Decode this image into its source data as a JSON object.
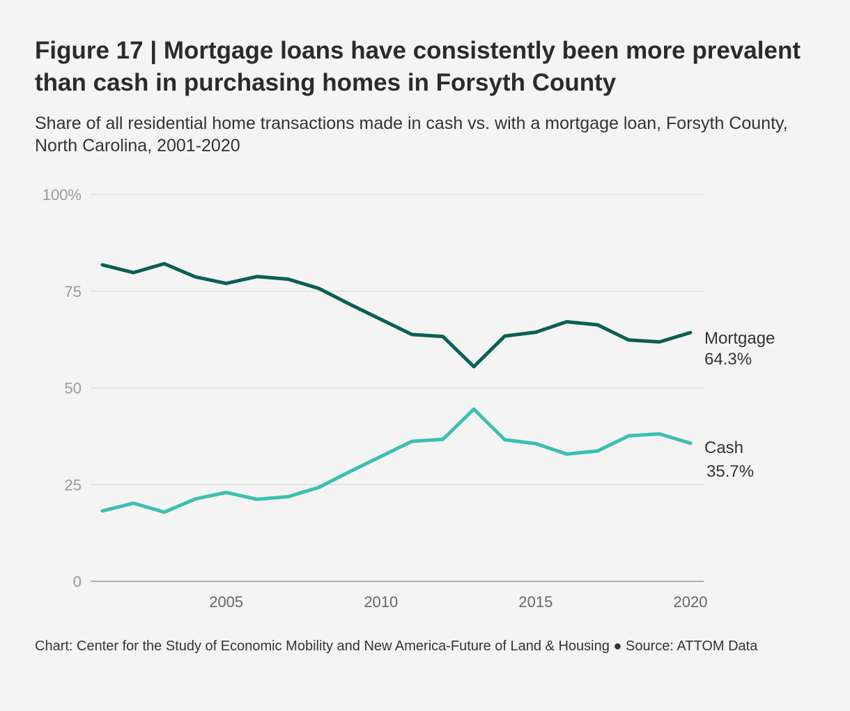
{
  "title": "Figure 17 | Mortgage loans have consistently been more prevalent than cash in purchasing homes in Forsyth County",
  "subtitle": "Share of all residential home transactions made in cash vs. with a mortgage loan, Forsyth County, North Carolina, 2001-2020",
  "caption": "Chart: Center for the Study of Economic Mobility and New America-Future of Land & Housing ● Source: ATTOM Data",
  "chart_data": {
    "type": "line",
    "title": "Figure 17 | Mortgage loans have consistently been more prevalent than cash in purchasing homes in Forsyth County",
    "xlabel": "",
    "ylabel": "",
    "x": [
      2001,
      2002,
      2003,
      2004,
      2005,
      2006,
      2007,
      2008,
      2009,
      2010,
      2011,
      2012,
      2013,
      2014,
      2015,
      2016,
      2017,
      2018,
      2019,
      2020
    ],
    "xlim": [
      2001,
      2020
    ],
    "ylim": [
      0,
      100
    ],
    "grid": true,
    "x_ticks": [
      {
        "value": 2005,
        "label": "2005"
      },
      {
        "value": 2010,
        "label": "2010"
      },
      {
        "value": 2015,
        "label": "2015"
      },
      {
        "value": 2020,
        "label": "2020"
      }
    ],
    "y_ticks": [
      {
        "value": 0,
        "label": "0"
      },
      {
        "value": 25,
        "label": "25"
      },
      {
        "value": 50,
        "label": "50"
      },
      {
        "value": 75,
        "label": "75"
      },
      {
        "value": 100,
        "label": "100%"
      }
    ],
    "series": [
      {
        "name": "Mortgage",
        "color": "#0b5f55",
        "end_label": "64.3%",
        "values": [
          81.8,
          79.8,
          82.1,
          78.7,
          77.0,
          78.8,
          78.1,
          75.7,
          71.6,
          67.7,
          63.8,
          63.3,
          55.5,
          63.4,
          64.4,
          67.1,
          66.3,
          62.4,
          61.9,
          64.3
        ]
      },
      {
        "name": "Cash",
        "color": "#3dbfb0",
        "end_label": "35.7%",
        "values": [
          18.2,
          20.2,
          17.9,
          21.3,
          23.0,
          21.2,
          21.9,
          24.3,
          28.4,
          32.3,
          36.2,
          36.7,
          44.5,
          36.6,
          35.6,
          32.9,
          33.7,
          37.6,
          38.1,
          35.7
        ]
      }
    ]
  }
}
